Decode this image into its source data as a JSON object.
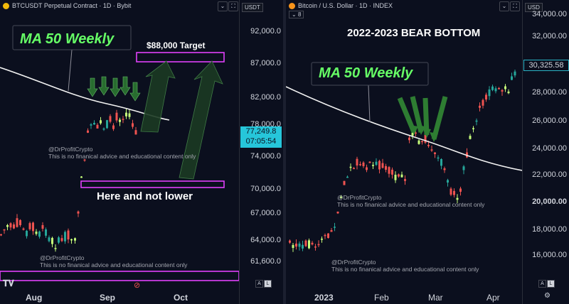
{
  "left": {
    "symbol": "BTCUSDT Perpetual Contract · 1D · Bybit",
    "currency": "USDT",
    "price_ticks": [
      "92,000.0",
      "87,000.0",
      "82,000.0",
      "78,000.0",
      "74,000.0",
      "70,000.0",
      "67,000.0",
      "64,000.0",
      "61,600.0"
    ],
    "current_price": "77,249.8",
    "countdown": "07:05:54",
    "x_labels": [
      "Aug",
      "Sep",
      "Oct"
    ],
    "ma_label": "MA 50 Weekly",
    "target_label": "$88,000 Target",
    "support_label": "Here and not lower",
    "watermark": [
      "@DrProfitCrypto",
      "This is no finanical advice and educational content only"
    ],
    "watermark2": [
      "@DrProfitCrypto",
      "This is no finanical advice and educational content only"
    ],
    "scale_buttons": [
      "A",
      "L"
    ],
    "toolbar_icons": [
      "chevron-down-icon",
      "expand-icon"
    ]
  },
  "right": {
    "symbol": "Bitcoin / U.S. Dollar · 1D · INDEX",
    "badge": "8",
    "currency": "USD",
    "price_ticks": [
      "34,000.00",
      "32,000.00",
      "28,000.00",
      "26,000.00",
      "24,000.00",
      "22,000.00",
      "20,000.00",
      "18,000.00",
      "16,000.00"
    ],
    "current_price": "30,325.58",
    "x_labels": [
      "2023",
      "Feb",
      "Mar",
      "Apr"
    ],
    "heading": "2022-2023 BEAR BOTTOM",
    "ma_label": "MA 50 Weekly",
    "watermark": [
      "@DrProfitCrypto",
      "This is no finanical advice and educational content only"
    ],
    "watermark2": [
      "@DrProfitCrypto",
      "This is no finanical advice and educational content only"
    ],
    "scale_buttons": [
      "A",
      "L"
    ],
    "colors": {
      "up": "#26a69a",
      "up_light": "#c6ff7a",
      "down": "#ef5350",
      "accent": "#26c6da",
      "annotation": "#66ff66",
      "box_border": "#e040fb"
    }
  }
}
